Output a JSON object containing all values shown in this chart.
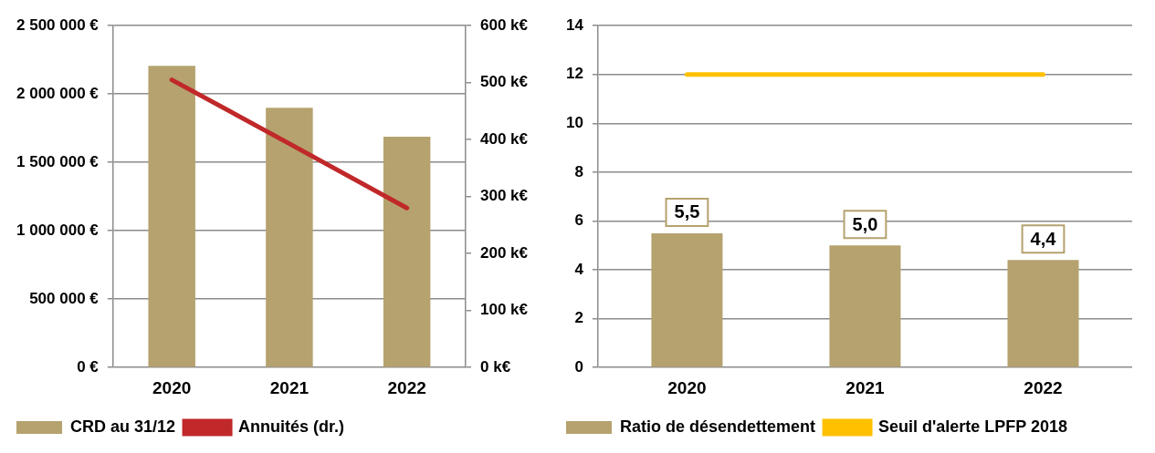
{
  "chart_data": [
    {
      "type": "bar",
      "categories": [
        "2020",
        "2021",
        "2022"
      ],
      "series": [
        {
          "name": "CRD au 31/12",
          "color": "#b5a26e",
          "values": [
            2207000,
            1900000,
            1688000
          ]
        },
        {
          "name": "Annuités (dr.)",
          "type": "line",
          "axis": "y2",
          "color": "#c0282a",
          "values": [
            505,
            393,
            280
          ]
        }
      ],
      "ylim": [
        0,
        2500000
      ],
      "yticks": [
        {
          "value": 0,
          "label": "0 €"
        },
        {
          "value": 500000,
          "label": "500 000 €"
        },
        {
          "value": 1000000,
          "label": "1 000 000 €"
        },
        {
          "value": 1500000,
          "label": "1 500 000 €"
        },
        {
          "value": 2000000,
          "label": "2 000 000 €"
        },
        {
          "value": 2500000,
          "label": "2 500 000 €"
        }
      ],
      "y2lim": [
        0,
        600
      ],
      "y2ticks": [
        {
          "value": 0,
          "label": "0 k€"
        },
        {
          "value": 100,
          "label": "100 k€"
        },
        {
          "value": 200,
          "label": "200 k€"
        },
        {
          "value": 300,
          "label": "300 k€"
        },
        {
          "value": 400,
          "label": "400 k€"
        },
        {
          "value": 500,
          "label": "500 k€"
        },
        {
          "value": 600,
          "label": "600 k€"
        }
      ],
      "grid": "y",
      "legend": "bottom",
      "marker": "none"
    },
    {
      "type": "bar",
      "categories": [
        "2020",
        "2021",
        "2022"
      ],
      "series": [
        {
          "name": "Ratio de désendettement",
          "color": "#b5a26e",
          "values": [
            5.5,
            5.0,
            4.4
          ],
          "value_labels": [
            "5,5",
            "5,0",
            "4,4"
          ]
        },
        {
          "name": "Seuil d'alerte LPFP 2018",
          "type": "line",
          "color": "#ffc000",
          "values": [
            12,
            12,
            12
          ]
        }
      ],
      "ylim": [
        0,
        14
      ],
      "yticks": [
        0,
        2,
        4,
        6,
        8,
        10,
        12,
        14
      ],
      "grid": "y",
      "legend": "bottom",
      "marker": "none"
    }
  ]
}
